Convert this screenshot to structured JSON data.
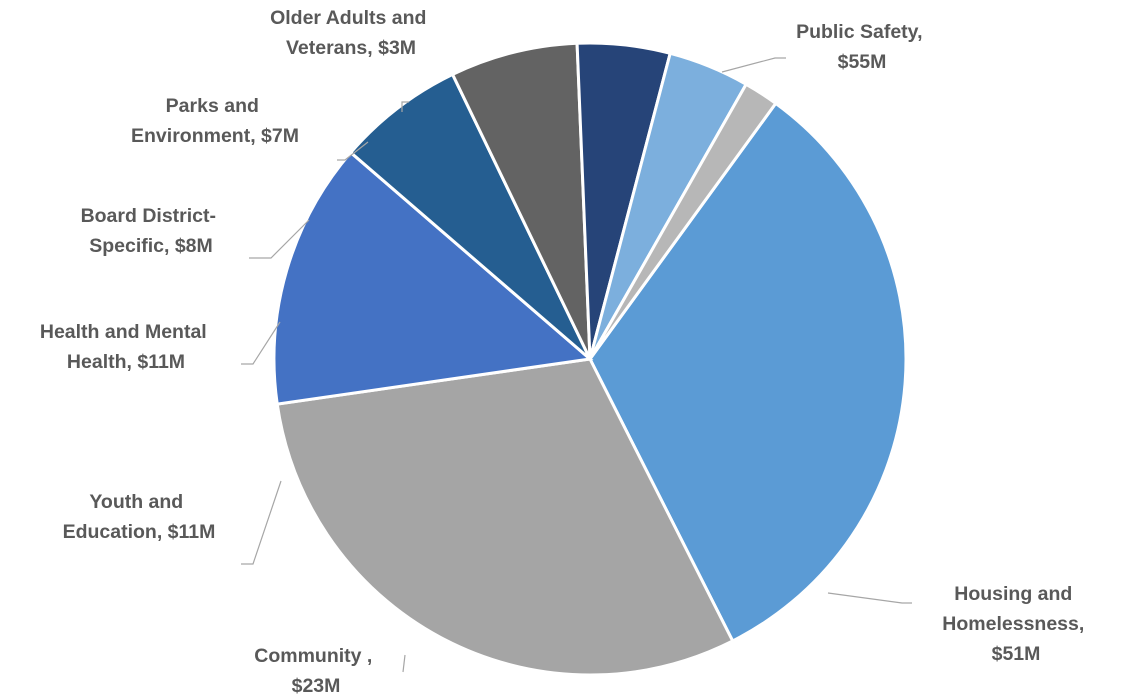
{
  "chart_data": {
    "type": "pie",
    "title": "",
    "legend": "none",
    "slices": [
      {
        "name": "Public Safety",
        "value": 55,
        "value_label": "$55M",
        "color": "#5b9bd5"
      },
      {
        "name": "Housing and Homelessness",
        "value": 51,
        "value_label": "$51M",
        "color": "#a5a5a5"
      },
      {
        "name": "Community",
        "value": 23,
        "value_label": "$23M",
        "color": "#4472c4"
      },
      {
        "name": "Youth and Education",
        "value": 11,
        "value_label": "$11M",
        "color": "#255e91"
      },
      {
        "name": "Health and Mental Health",
        "value": 11,
        "value_label": "$11M",
        "color": "#636363"
      },
      {
        "name": "Board District-Specific",
        "value": 8,
        "value_label": "$8M",
        "color": "#264478"
      },
      {
        "name": "Parks and Environment",
        "value": 7,
        "value_label": "$7M",
        "color": "#7cafdd"
      },
      {
        "name": "Older Adults and Veterans",
        "value": 3,
        "value_label": "$3M",
        "color": "#b7b7b7"
      }
    ],
    "data_labels": [
      [
        "Public Safety,",
        "$55M"
      ],
      [
        "Housing and",
        "Homelessness,",
        "$51M"
      ],
      [
        "Community ,",
        "$23M"
      ],
      [
        "Youth and",
        "Education, $11M"
      ],
      [
        "Health and Mental",
        "Health, $11M"
      ],
      [
        "Board District-",
        "Specific, $8M"
      ],
      [
        "Parks and",
        "Environment, $7M"
      ],
      [
        "Older Adults and",
        "Veterans, $3M"
      ]
    ]
  }
}
